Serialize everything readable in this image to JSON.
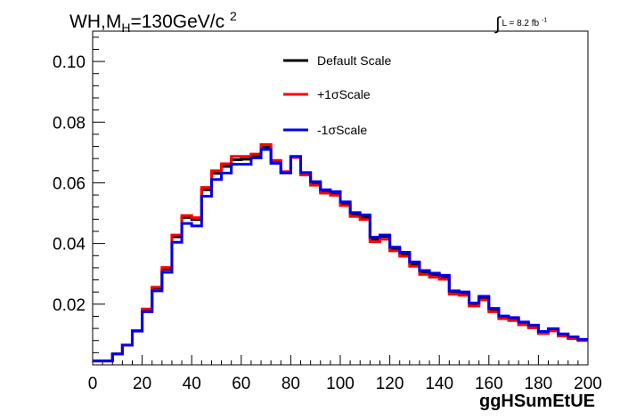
{
  "header": {
    "title_main": "WH,M",
    "title_sub": "H",
    "title_rest": "=130GeV/c",
    "title_sup": "2",
    "lumi_label": "L = 8.2 fb",
    "lumi_sup": "-1"
  },
  "chart_data": {
    "type": "line",
    "xlabel": "ggHSumEtUE",
    "ylabel": "",
    "xlim": [
      0,
      200
    ],
    "ylim": [
      0,
      0.11
    ],
    "x_ticks": [
      0,
      20,
      40,
      60,
      80,
      100,
      120,
      140,
      160,
      180,
      200
    ],
    "y_ticks": [
      0.02,
      0.04,
      0.06,
      0.08,
      0.1
    ],
    "y_tick_labels": [
      "0.02",
      "0.04",
      "0.06",
      "0.08",
      "0.10"
    ],
    "bin_edges": [
      0,
      4,
      8,
      12,
      16,
      20,
      24,
      28,
      32,
      36,
      40,
      44,
      48,
      52,
      56,
      60,
      64,
      68,
      72,
      76,
      80,
      84,
      88,
      92,
      96,
      100,
      104,
      108,
      112,
      116,
      120,
      124,
      128,
      132,
      136,
      140,
      144,
      148,
      152,
      156,
      160,
      164,
      168,
      172,
      176,
      180,
      184,
      188,
      192,
      196,
      200
    ],
    "legend_position": "top-center",
    "series": [
      {
        "name": "Default Scale",
        "color": "#000000",
        "values": [
          0.0013,
          0.0013,
          0.0036,
          0.0065,
          0.0113,
          0.0181,
          0.0253,
          0.0315,
          0.0422,
          0.0486,
          0.0479,
          0.0577,
          0.0631,
          0.0654,
          0.0676,
          0.0678,
          0.069,
          0.0718,
          0.0669,
          0.0633,
          0.0684,
          0.0629,
          0.0598,
          0.0571,
          0.0565,
          0.0531,
          0.0495,
          0.0487,
          0.0414,
          0.0423,
          0.0383,
          0.0365,
          0.0333,
          0.0305,
          0.0297,
          0.0289,
          0.0239,
          0.0235,
          0.0199,
          0.0221,
          0.0181,
          0.0157,
          0.0151,
          0.0137,
          0.0127,
          0.0107,
          0.0116,
          0.0099,
          0.0089,
          0.0082
        ]
      },
      {
        "name": "+1σScale",
        "color": "#ff0000",
        "values": [
          0.0013,
          0.0013,
          0.0036,
          0.0065,
          0.0113,
          0.0184,
          0.0256,
          0.0321,
          0.0428,
          0.0492,
          0.0485,
          0.0585,
          0.064,
          0.0663,
          0.0687,
          0.0687,
          0.0695,
          0.0726,
          0.0674,
          0.0637,
          0.0684,
          0.0626,
          0.0592,
          0.0566,
          0.0559,
          0.0525,
          0.0489,
          0.0479,
          0.0406,
          0.0414,
          0.0376,
          0.0358,
          0.0325,
          0.0298,
          0.0289,
          0.0282,
          0.0233,
          0.0229,
          0.0194,
          0.0214,
          0.0175,
          0.0152,
          0.0146,
          0.0132,
          0.0122,
          0.0103,
          0.0112,
          0.0095,
          0.0086,
          0.008
        ]
      },
      {
        "name": "-1σScale",
        "color": "#0000ee",
        "values": [
          0.0013,
          0.0013,
          0.0036,
          0.0065,
          0.0111,
          0.0175,
          0.0244,
          0.0305,
          0.0404,
          0.0466,
          0.0458,
          0.0556,
          0.0611,
          0.0632,
          0.0661,
          0.0661,
          0.0682,
          0.071,
          0.0664,
          0.0633,
          0.0687,
          0.0634,
          0.0604,
          0.0577,
          0.0571,
          0.0537,
          0.0502,
          0.0494,
          0.0421,
          0.0428,
          0.0388,
          0.0371,
          0.0339,
          0.0311,
          0.0302,
          0.0295,
          0.0244,
          0.024,
          0.0204,
          0.0226,
          0.0186,
          0.0161,
          0.0156,
          0.0141,
          0.0131,
          0.011,
          0.0119,
          0.0102,
          0.0092,
          0.0084
        ]
      }
    ]
  }
}
